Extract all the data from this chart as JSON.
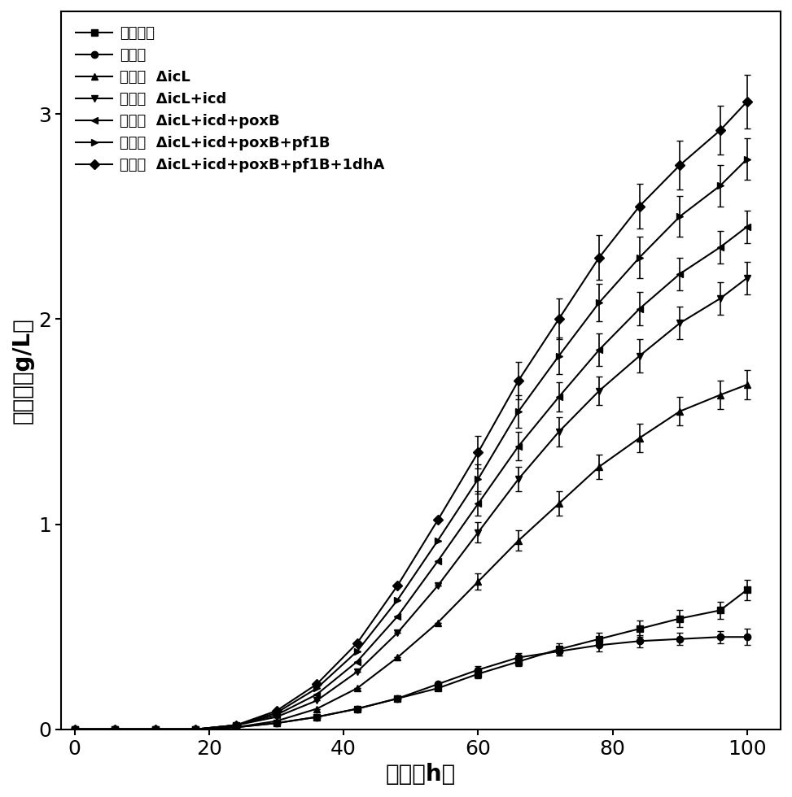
{
  "title": "",
  "xlabel": "时间（h）",
  "ylabel": "衣康酸（g/L）",
  "xlim": [
    -2,
    105
  ],
  "ylim": [
    0,
    3.5
  ],
  "xticks": [
    0,
    20,
    40,
    60,
    80,
    100
  ],
  "yticks": [
    0,
    1,
    2,
    3
  ],
  "series": [
    {
      "label_cn": "共表达菌",
      "label_en": "",
      "marker": "s",
      "x": [
        0,
        6,
        12,
        18,
        24,
        30,
        36,
        42,
        48,
        54,
        60,
        66,
        72,
        78,
        84,
        90,
        96,
        100
      ],
      "y": [
        0,
        0,
        0,
        0,
        0.01,
        0.03,
        0.06,
        0.1,
        0.15,
        0.2,
        0.27,
        0.33,
        0.39,
        0.44,
        0.49,
        0.54,
        0.58,
        0.68
      ],
      "yerr": [
        0,
        0,
        0,
        0,
        0,
        0,
        0,
        0,
        0,
        0,
        0.02,
        0.02,
        0.03,
        0.03,
        0.04,
        0.04,
        0.04,
        0.05
      ]
    },
    {
      "label_cn": "组装菌",
      "label_en": "",
      "marker": "o",
      "x": [
        0,
        6,
        12,
        18,
        24,
        30,
        36,
        42,
        48,
        54,
        60,
        66,
        72,
        78,
        84,
        90,
        96,
        100
      ],
      "y": [
        0,
        0,
        0,
        0,
        0.01,
        0.03,
        0.06,
        0.1,
        0.15,
        0.22,
        0.29,
        0.35,
        0.38,
        0.41,
        0.43,
        0.44,
        0.45,
        0.45
      ],
      "yerr": [
        0,
        0,
        0,
        0,
        0,
        0,
        0,
        0,
        0,
        0,
        0.02,
        0.02,
        0.02,
        0.03,
        0.03,
        0.03,
        0.03,
        0.04
      ]
    },
    {
      "label_cn": "组装菌",
      "label_en": "ΔicL",
      "marker": "^",
      "x": [
        0,
        6,
        12,
        18,
        24,
        30,
        36,
        42,
        48,
        54,
        60,
        66,
        72,
        78,
        84,
        90,
        96,
        100
      ],
      "y": [
        0,
        0,
        0,
        0,
        0.01,
        0.04,
        0.1,
        0.2,
        0.35,
        0.52,
        0.72,
        0.92,
        1.1,
        1.28,
        1.42,
        1.55,
        1.63,
        1.68
      ],
      "yerr": [
        0,
        0,
        0,
        0,
        0,
        0,
        0,
        0,
        0,
        0,
        0.04,
        0.05,
        0.06,
        0.06,
        0.07,
        0.07,
        0.07,
        0.07
      ]
    },
    {
      "label_cn": "组装菌",
      "label_en": "ΔicL+icd",
      "marker": "v",
      "x": [
        0,
        6,
        12,
        18,
        24,
        30,
        36,
        42,
        48,
        54,
        60,
        66,
        72,
        78,
        84,
        90,
        96,
        100
      ],
      "y": [
        0,
        0,
        0,
        0,
        0.02,
        0.06,
        0.14,
        0.28,
        0.47,
        0.7,
        0.96,
        1.22,
        1.45,
        1.65,
        1.82,
        1.98,
        2.1,
        2.2
      ],
      "yerr": [
        0,
        0,
        0,
        0,
        0,
        0,
        0,
        0,
        0,
        0,
        0.05,
        0.06,
        0.07,
        0.07,
        0.08,
        0.08,
        0.08,
        0.08
      ]
    },
    {
      "label_cn": "组装菌",
      "label_en": "ΔicL+icd+poxB",
      "marker": "<",
      "x": [
        0,
        6,
        12,
        18,
        24,
        30,
        36,
        42,
        48,
        54,
        60,
        66,
        72,
        78,
        84,
        90,
        96,
        100
      ],
      "y": [
        0,
        0,
        0,
        0,
        0.02,
        0.07,
        0.17,
        0.33,
        0.55,
        0.82,
        1.1,
        1.38,
        1.62,
        1.85,
        2.05,
        2.22,
        2.35,
        2.45
      ],
      "yerr": [
        0,
        0,
        0,
        0,
        0,
        0,
        0,
        0,
        0,
        0,
        0.06,
        0.07,
        0.07,
        0.08,
        0.08,
        0.08,
        0.08,
        0.08
      ]
    },
    {
      "label_cn": "组装菌",
      "label_en": "ΔicL+icd+poxB+pf1B",
      "marker": ">",
      "x": [
        0,
        6,
        12,
        18,
        24,
        30,
        36,
        42,
        48,
        54,
        60,
        66,
        72,
        78,
        84,
        90,
        96,
        100
      ],
      "y": [
        0,
        0,
        0,
        0,
        0.02,
        0.08,
        0.2,
        0.38,
        0.63,
        0.92,
        1.22,
        1.55,
        1.82,
        2.08,
        2.3,
        2.5,
        2.65,
        2.78
      ],
      "yerr": [
        0,
        0,
        0,
        0,
        0,
        0,
        0,
        0,
        0,
        0,
        0.07,
        0.08,
        0.09,
        0.09,
        0.1,
        0.1,
        0.1,
        0.1
      ]
    },
    {
      "label_cn": "组装菌",
      "label_en": "ΔicL+icd+poxB+pf1B+1dhA",
      "marker": "D",
      "x": [
        0,
        6,
        12,
        18,
        24,
        30,
        36,
        42,
        48,
        54,
        60,
        66,
        72,
        78,
        84,
        90,
        96,
        100
      ],
      "y": [
        0,
        0,
        0,
        0,
        0.02,
        0.09,
        0.22,
        0.42,
        0.7,
        1.02,
        1.35,
        1.7,
        2.0,
        2.3,
        2.55,
        2.75,
        2.92,
        3.06
      ],
      "yerr": [
        0,
        0,
        0,
        0,
        0,
        0,
        0,
        0,
        0,
        0,
        0.08,
        0.09,
        0.1,
        0.11,
        0.11,
        0.12,
        0.12,
        0.13
      ]
    }
  ],
  "background_color": "#ffffff",
  "font_size": 18,
  "tick_font_size": 18,
  "legend_fontsize": 13
}
